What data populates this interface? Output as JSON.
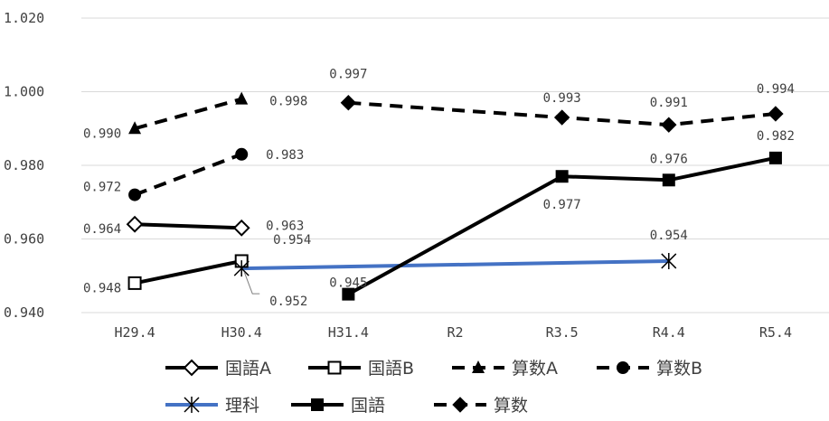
{
  "chart_data": {
    "type": "line",
    "categories": [
      "H29.4",
      "H30.4",
      "H31.4",
      "R2",
      "R3.5",
      "R4.4",
      "R5.4"
    ],
    "ylim": [
      0.94,
      1.02
    ],
    "yticks": [
      "0.940",
      "0.960",
      "0.980",
      "1.000",
      "1.020"
    ],
    "grid": true,
    "legend_position": "bottom",
    "series": [
      {
        "name": "国語A",
        "values": [
          0.964,
          0.963,
          null,
          null,
          null,
          null,
          null
        ],
        "labels": [
          "0.964",
          "0.963",
          "",
          "",
          "",
          "",
          ""
        ],
        "color": "#000000",
        "dash": false,
        "marker": "diamond-open"
      },
      {
        "name": "国語B",
        "values": [
          0.948,
          0.954,
          null,
          null,
          null,
          null,
          null
        ],
        "labels": [
          "0.948",
          "0.954",
          "",
          "",
          "",
          "",
          ""
        ],
        "color": "#000000",
        "dash": false,
        "marker": "square-open"
      },
      {
        "name": "算数A",
        "values": [
          0.99,
          0.998,
          null,
          null,
          null,
          null,
          null
        ],
        "labels": [
          "0.990",
          "0.998",
          "",
          "",
          "",
          "",
          ""
        ],
        "color": "#000000",
        "dash": true,
        "marker": "triangle"
      },
      {
        "name": "算数B",
        "values": [
          0.972,
          0.983,
          null,
          null,
          null,
          null,
          null
        ],
        "labels": [
          "0.972",
          "0.983",
          "",
          "",
          "",
          "",
          ""
        ],
        "color": "#000000",
        "dash": true,
        "marker": "circle"
      },
      {
        "name": "理科",
        "values": [
          null,
          0.952,
          null,
          null,
          null,
          0.954,
          null
        ],
        "labels": [
          "",
          "0.952",
          "",
          "",
          "",
          "0.954",
          ""
        ],
        "color": "#4472c4",
        "dash": false,
        "marker": "star"
      },
      {
        "name": "国語",
        "values": [
          null,
          null,
          0.945,
          null,
          0.977,
          0.976,
          0.982
        ],
        "labels": [
          "",
          "",
          "0.945",
          "",
          "0.977",
          "0.976",
          "0.982"
        ],
        "color": "#000000",
        "dash": false,
        "marker": "square"
      },
      {
        "name": "算数",
        "values": [
          null,
          null,
          0.997,
          null,
          0.993,
          0.991,
          0.994
        ],
        "labels": [
          "",
          "",
          "0.997",
          "",
          "0.993",
          "0.991",
          "0.994"
        ],
        "color": "#000000",
        "dash": true,
        "marker": "diamond"
      }
    ]
  }
}
